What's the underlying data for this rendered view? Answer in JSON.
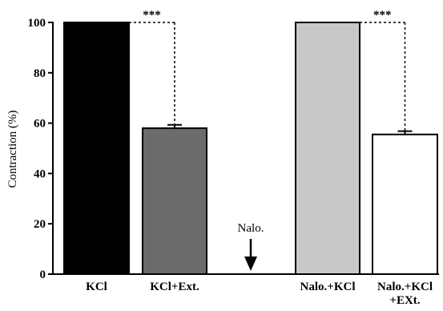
{
  "chart_data": {
    "type": "bar",
    "ylabel": "Contraction (%)",
    "ylim": [
      0,
      100
    ],
    "yticks": [
      0,
      20,
      40,
      60,
      80,
      100
    ],
    "categories": [
      {
        "id": "kcl",
        "label": [
          "KCl"
        ],
        "value": 100,
        "error": 0,
        "color": "#000000"
      },
      {
        "id": "kcl-ext",
        "label": [
          "KCl+Ext."
        ],
        "value": 58,
        "error": 1.3,
        "color": "#6b6b6b"
      },
      {
        "id": "nalo-kcl",
        "label": [
          "Nalo.+KCl"
        ],
        "value": 100,
        "error": 0,
        "color": "#c8c8c8"
      },
      {
        "id": "nalo-kcl-ext",
        "label": [
          "Nalo.+KCl",
          "+EXt."
        ],
        "value": 55.5,
        "error": 1.3,
        "color": "#ffffff"
      }
    ],
    "significance": [
      {
        "from": "kcl",
        "to": "kcl-ext",
        "label": "***"
      },
      {
        "from": "nalo-kcl",
        "to": "nalo-kcl-ext",
        "label": "***"
      }
    ],
    "annotation": {
      "label": "Nalo.",
      "symbol": "down-arrow"
    }
  }
}
